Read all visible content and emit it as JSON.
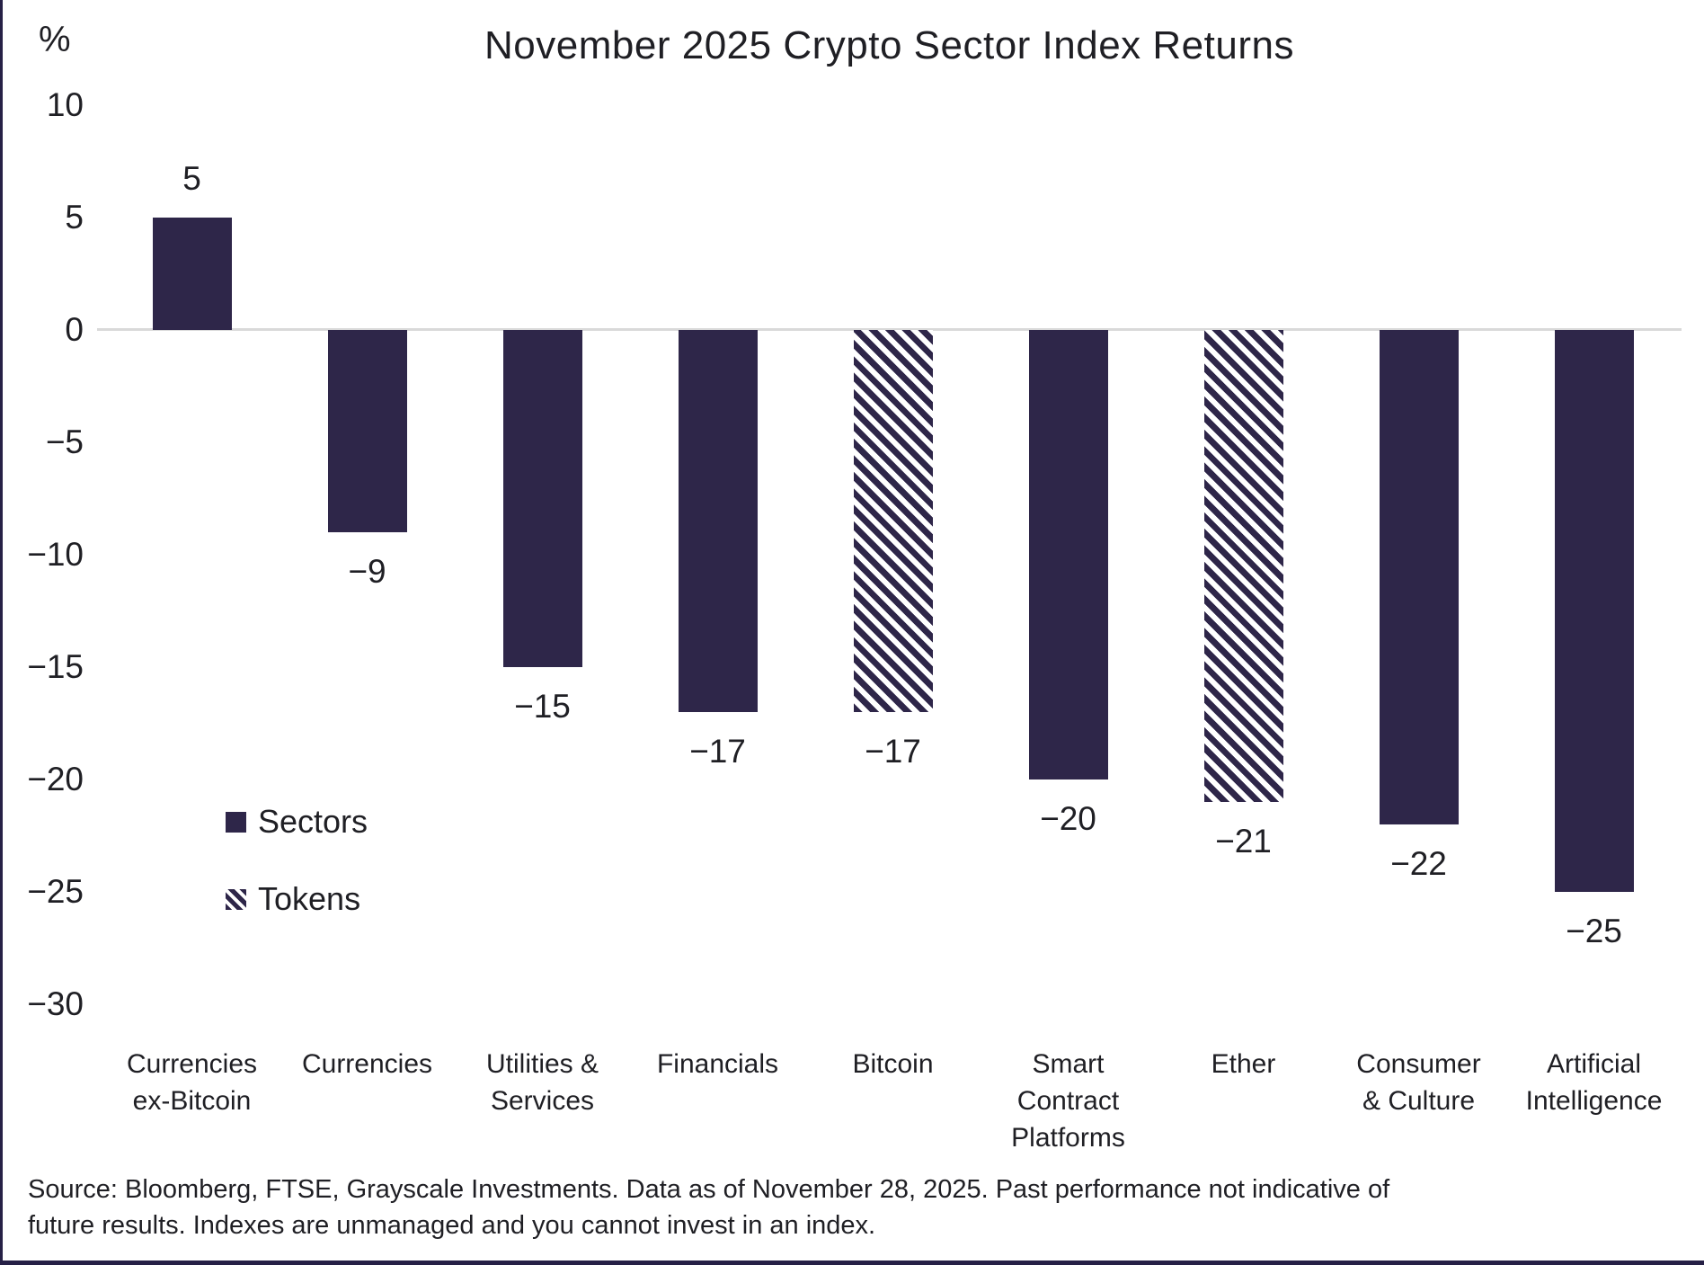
{
  "title": "November 2025 Crypto Sector Index Returns",
  "y_axis": {
    "unit_label": "%",
    "tick_labels": [
      "10",
      "5",
      "0",
      "−5",
      "−10",
      "−15",
      "−20",
      "−25",
      "−30"
    ],
    "tick_values": [
      10,
      5,
      0,
      -5,
      -10,
      -15,
      -20,
      -25,
      -30
    ]
  },
  "legend": {
    "sectors_label": "Sectors",
    "tokens_label": "Tokens"
  },
  "chart_data": {
    "type": "bar",
    "title": "November 2025 Crypto Sector Index Returns",
    "xlabel": "",
    "ylabel": "%",
    "ylim": [
      -30,
      10
    ],
    "ytick_step": 5,
    "grid": false,
    "legend_position": "inside-left-middle",
    "categories": [
      "Currencies\nex-Bitcoin",
      "Currencies",
      "Utilities &\nServices",
      "Financials",
      "Bitcoin",
      "Smart\nContract\nPlatforms",
      "Ether",
      "Consumer\n& Culture",
      "Artificial\nIntelligence"
    ],
    "values": [
      5,
      -9,
      -15,
      -17,
      -17,
      -20,
      -21,
      -22,
      -25
    ],
    "value_labels": [
      "5",
      "−9",
      "−15",
      "−17",
      "−17",
      "−20",
      "−21",
      "−22",
      "−25"
    ],
    "bar_styles": [
      "solid",
      "solid",
      "solid",
      "solid",
      "hatched",
      "solid",
      "hatched",
      "solid",
      "solid"
    ],
    "style_legend": [
      {
        "name": "Sectors",
        "fill": "solid"
      },
      {
        "name": "Tokens",
        "fill": "hatched"
      }
    ],
    "colors": {
      "bar": "#2E2649",
      "zero_line": "#D9D9D9",
      "text": "#1F1F24"
    }
  },
  "footer": {
    "source_note": "Source: Bloomberg, FTSE, Grayscale Investments. Data as of November 28, 2025. Past performance not indicative of future results. Indexes are unmanaged and you cannot invest in an index."
  }
}
